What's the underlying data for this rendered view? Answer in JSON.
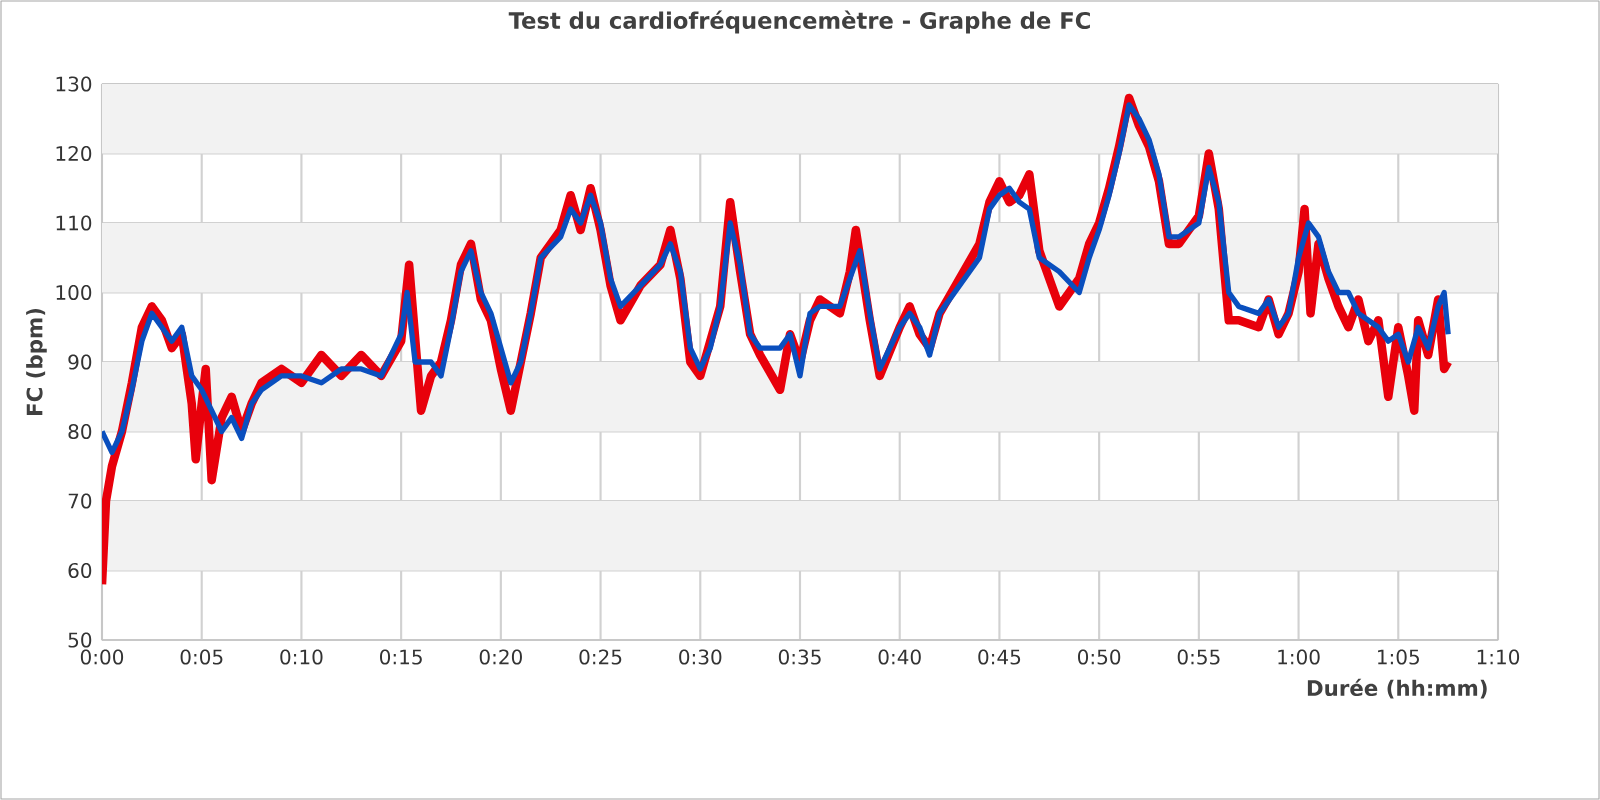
{
  "chart_data": {
    "type": "line",
    "title": "Test du cardiofréquencemètre - Graphe de FC",
    "xlabel": "Durée (hh:mm)",
    "ylabel": "FC (bpm)",
    "xlim": [
      0,
      70
    ],
    "ylim": [
      50,
      130
    ],
    "xticks": [
      {
        "value": 0,
        "label": "0:00"
      },
      {
        "value": 5,
        "label": "0:05"
      },
      {
        "value": 10,
        "label": "0:10"
      },
      {
        "value": 15,
        "label": "0:15"
      },
      {
        "value": 20,
        "label": "0:20"
      },
      {
        "value": 25,
        "label": "0:25"
      },
      {
        "value": 30,
        "label": "0:30"
      },
      {
        "value": 35,
        "label": "0:35"
      },
      {
        "value": 40,
        "label": "0:40"
      },
      {
        "value": 45,
        "label": "0:45"
      },
      {
        "value": 50,
        "label": "0:50"
      },
      {
        "value": 55,
        "label": "0:55"
      },
      {
        "value": 60,
        "label": "1:00"
      },
      {
        "value": 65,
        "label": "1:05"
      },
      {
        "value": 70,
        "label": "1:10"
      }
    ],
    "yticks": [
      50,
      60,
      70,
      80,
      90,
      100,
      110,
      120,
      130
    ],
    "grid": true,
    "marker": "none",
    "line_style": "solid",
    "series": [
      {
        "color": "#e8000b",
        "x": [
          0,
          0.2,
          0.5,
          1,
          1.5,
          2,
          2.5,
          3,
          3.5,
          4,
          4.5,
          4.7,
          5,
          5.2,
          5.5,
          6,
          6.5,
          7,
          7.5,
          8,
          9,
          10,
          11,
          12,
          13,
          14,
          15,
          15.4,
          16,
          16.5,
          17,
          17.5,
          18,
          18.5,
          19,
          19.5,
          20,
          20.5,
          21,
          21.5,
          22,
          23,
          23.5,
          24,
          24.5,
          25,
          25.5,
          26,
          27,
          28,
          28.5,
          29,
          29.5,
          30,
          30.5,
          31,
          31.5,
          32,
          32.5,
          33,
          34,
          34.5,
          35,
          35.5,
          36,
          37,
          37.5,
          37.8,
          38.5,
          39,
          40,
          40.5,
          41,
          41.5,
          42,
          43,
          44,
          44.5,
          45,
          45.5,
          46,
          46.5,
          47,
          48,
          49,
          49.5,
          50,
          50.5,
          51,
          51.5,
          52,
          52.5,
          53,
          53.5,
          54,
          55,
          55.5,
          56,
          56.5,
          57,
          58,
          58.5,
          59,
          59.5,
          60,
          60.3,
          60.6,
          61,
          61.5,
          62,
          62.5,
          63,
          63.5,
          64,
          64.5,
          65,
          65.5,
          65.8,
          66,
          66.5,
          67,
          67.3,
          67.5
        ],
        "values": [
          58,
          70,
          75,
          80,
          87,
          95,
          98,
          96,
          92,
          94,
          84,
          76,
          84,
          89,
          73,
          82,
          85,
          80,
          84,
          87,
          89,
          87,
          91,
          88,
          91,
          88,
          93,
          104,
          83,
          88,
          90,
          96,
          104,
          107,
          99,
          96,
          89,
          83,
          90,
          97,
          105,
          109,
          114,
          109,
          115,
          109,
          101,
          96,
          101,
          104,
          109,
          102,
          90,
          88,
          93,
          98,
          113,
          103,
          94,
          91,
          86,
          94,
          90,
          96,
          99,
          97,
          103,
          109,
          96,
          88,
          95,
          98,
          94,
          92,
          97,
          102,
          107,
          113,
          116,
          113,
          114,
          117,
          106,
          98,
          102,
          107,
          110,
          115,
          121,
          128,
          124,
          121,
          116,
          107,
          107,
          111,
          120,
          112,
          96,
          96,
          95,
          99,
          94,
          97,
          103,
          112,
          97,
          107,
          102,
          98,
          95,
          99,
          93,
          96,
          85,
          95,
          88,
          83,
          96,
          91,
          99,
          89,
          90
        ]
      },
      {
        "color": "#0a4fbe",
        "x": [
          0,
          0.5,
          1,
          1.5,
          2,
          2.5,
          3,
          3.5,
          4,
          4.5,
          5,
          5.5,
          6,
          6.5,
          7,
          7.5,
          8,
          9,
          10,
          11,
          12,
          13,
          14,
          15,
          15.3,
          15.7,
          16.5,
          17,
          17.5,
          18,
          18.5,
          19,
          19.5,
          20,
          20.5,
          21,
          21.5,
          22,
          23,
          23.5,
          24,
          24.5,
          25,
          25.5,
          26,
          27,
          28,
          28.5,
          29,
          29.5,
          30,
          30.5,
          31,
          31.5,
          32,
          32.5,
          33,
          34,
          34.5,
          35,
          35.5,
          36,
          37,
          37.5,
          38,
          38.5,
          39,
          40,
          40.5,
          41,
          41.5,
          42,
          43,
          44,
          44.5,
          45,
          45.5,
          46,
          46.5,
          47,
          48,
          49,
          49.5,
          50,
          50.5,
          51,
          51.5,
          52,
          52.5,
          53,
          53.5,
          54,
          55,
          55.5,
          56,
          56.5,
          57,
          58,
          58.5,
          59,
          59.5,
          60,
          60.5,
          61,
          61.5,
          62,
          62.5,
          63,
          63.5,
          64,
          64.5,
          65,
          65.5,
          66,
          66.5,
          67,
          67.3,
          67.5
        ],
        "values": [
          80,
          77,
          80,
          86,
          93,
          97,
          95,
          93,
          95,
          88,
          86,
          83,
          80,
          82,
          79,
          84,
          86,
          88,
          88,
          87,
          89,
          89,
          88,
          94,
          100,
          90,
          90,
          88,
          95,
          103,
          106,
          100,
          97,
          92,
          87,
          90,
          97,
          105,
          108,
          112,
          110,
          114,
          110,
          102,
          98,
          101,
          104,
          107,
          103,
          92,
          89,
          92,
          98,
          110,
          104,
          94,
          92,
          92,
          94,
          88,
          97,
          98,
          98,
          102,
          106,
          97,
          89,
          95,
          97,
          95,
          91,
          97,
          101,
          105,
          112,
          114,
          115,
          113,
          112,
          105,
          103,
          100,
          105,
          109,
          114,
          120,
          127,
          125,
          122,
          117,
          108,
          108,
          110,
          118,
          113,
          100,
          98,
          97,
          99,
          95,
          97,
          105,
          110,
          108,
          103,
          100,
          100,
          97,
          96,
          95,
          93,
          94,
          90,
          95,
          92,
          98,
          100,
          94
        ]
      }
    ]
  }
}
